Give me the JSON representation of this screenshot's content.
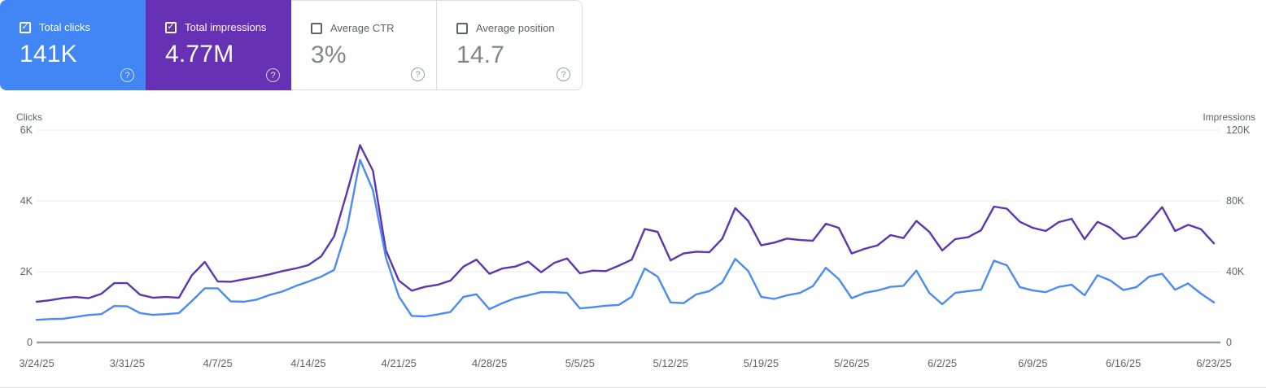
{
  "icons": {
    "check": "✓",
    "help": "?"
  },
  "cards": [
    {
      "label": "Total clicks",
      "value": "141K",
      "selected": true,
      "color": "#4285f4"
    },
    {
      "label": "Total impressions",
      "value": "4.77M",
      "selected": true,
      "color": "#6731b5"
    },
    {
      "label": "Average CTR",
      "value": "3%",
      "selected": false,
      "color": "#ffffff"
    },
    {
      "label": "Average position",
      "value": "14.7",
      "selected": false,
      "color": "#ffffff"
    }
  ],
  "chart_data": {
    "type": "line",
    "x_unit": "day",
    "x_tick_labels": [
      "3/24/25",
      "3/31/25",
      "4/7/25",
      "4/14/25",
      "4/21/25",
      "4/28/25",
      "5/5/25",
      "5/12/25",
      "5/19/25",
      "5/26/25",
      "6/2/25",
      "6/9/25",
      "6/16/25",
      "6/23/25"
    ],
    "x_tick_indices": [
      0,
      7,
      14,
      21,
      28,
      35,
      42,
      49,
      56,
      63,
      70,
      77,
      84,
      91
    ],
    "left_axis": {
      "title": "Clicks",
      "ticks": [
        0,
        2000,
        4000,
        6000
      ],
      "tick_labels": [
        "0",
        "2K",
        "4K",
        "6K"
      ],
      "max": 6000
    },
    "right_axis": {
      "title": "Impressions",
      "ticks": [
        0,
        40000,
        80000,
        120000
      ],
      "tick_labels": [
        "0",
        "40K",
        "80K",
        "120K"
      ],
      "max": 120000
    },
    "grid": true,
    "legend": "none",
    "series": [
      {
        "name": "Total impressions",
        "axis": "right",
        "color": "#5e35b1",
        "values": [
          23000,
          23800,
          25000,
          25700,
          25000,
          27500,
          33500,
          33500,
          27000,
          25300,
          25700,
          25300,
          38000,
          45500,
          34500,
          34300,
          35700,
          36900,
          38500,
          40300,
          41800,
          43700,
          48700,
          60000,
          85000,
          111500,
          97000,
          52000,
          35000,
          29300,
          31400,
          32600,
          35000,
          42900,
          46800,
          38800,
          41800,
          42900,
          45700,
          39700,
          44900,
          47500,
          39100,
          40600,
          40300,
          43400,
          46800,
          64100,
          62500,
          46400,
          50300,
          51300,
          51000,
          58700,
          75900,
          68700,
          54900,
          56400,
          58700,
          57900,
          57500,
          67100,
          64800,
          50300,
          52900,
          54900,
          60700,
          59000,
          68700,
          62500,
          52000,
          58400,
          59500,
          63400,
          76800,
          75600,
          68200,
          64800,
          63000,
          68000,
          69900,
          58400,
          68200,
          64800,
          58500,
          60000,
          68000,
          76500,
          63000,
          66500,
          64000,
          56000
        ]
      },
      {
        "name": "Total clicks",
        "axis": "left",
        "color": "#4a8af4",
        "values": [
          640,
          660,
          670,
          720,
          775,
          800,
          1030,
          1020,
          830,
          780,
          800,
          830,
          1170,
          1530,
          1530,
          1160,
          1150,
          1210,
          1340,
          1440,
          1590,
          1720,
          1860,
          2050,
          3240,
          5160,
          4300,
          2400,
          1300,
          750,
          735,
          790,
          865,
          1290,
          1360,
          940,
          1110,
          1250,
          1330,
          1420,
          1420,
          1400,
          960,
          995,
          1040,
          1060,
          1290,
          2090,
          1860,
          1130,
          1110,
          1360,
          1450,
          1700,
          2360,
          2020,
          1290,
          1230,
          1330,
          1400,
          1590,
          2110,
          1790,
          1250,
          1400,
          1470,
          1570,
          1600,
          2030,
          1400,
          1080,
          1400,
          1450,
          1490,
          2310,
          2180,
          1560,
          1470,
          1420,
          1570,
          1630,
          1330,
          1900,
          1750,
          1480,
          1560,
          1860,
          1940,
          1490,
          1670,
          1380,
          1130
        ]
      }
    ]
  }
}
